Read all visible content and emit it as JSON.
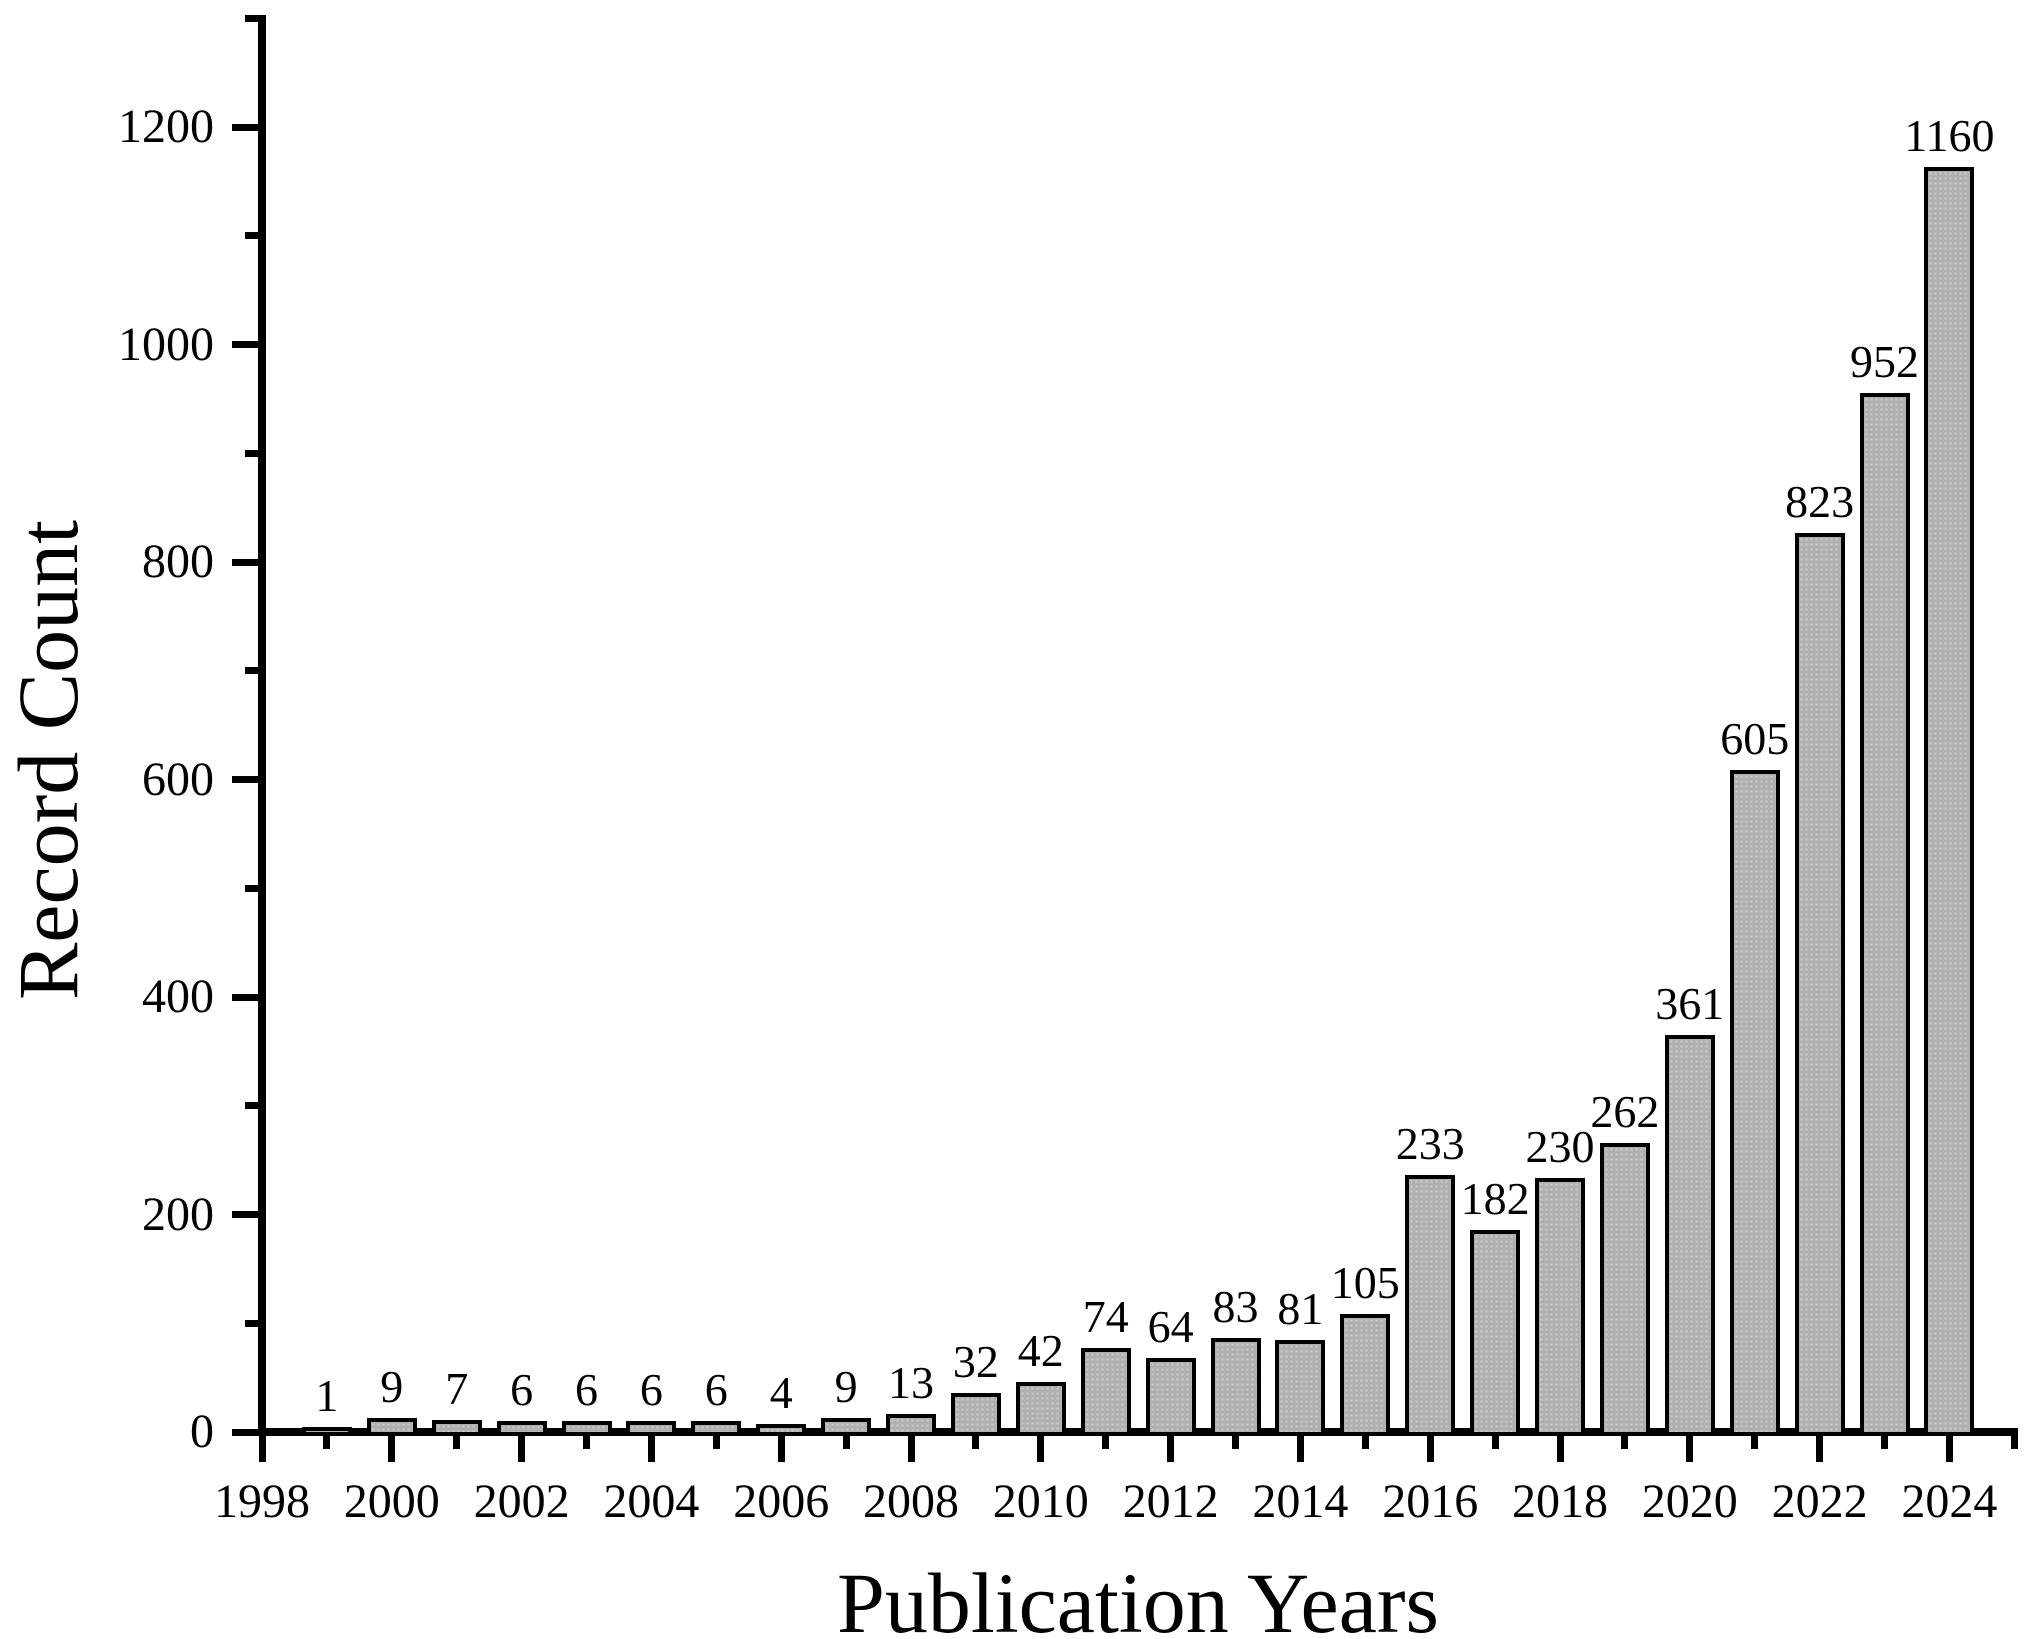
{
  "chart_data": {
    "type": "bar",
    "title": "",
    "xlabel": "Publication Years",
    "ylabel": "Record Count",
    "categories": [
      1999,
      2000,
      2001,
      2002,
      2003,
      2004,
      2005,
      2006,
      2007,
      2008,
      2009,
      2010,
      2011,
      2012,
      2013,
      2014,
      2015,
      2016,
      2017,
      2018,
      2019,
      2020,
      2021,
      2022,
      2023,
      2024
    ],
    "values": [
      1,
      9,
      7,
      6,
      6,
      6,
      6,
      4,
      9,
      13,
      32,
      42,
      74,
      64,
      83,
      81,
      105,
      233,
      182,
      230,
      262,
      361,
      605,
      823,
      952,
      1160
    ],
    "value_labels": [
      "1",
      "9",
      "7",
      "6",
      "6",
      "6",
      "6",
      "4",
      "9",
      "13",
      "32",
      "42",
      "74",
      "64",
      "83",
      "81",
      "105",
      "233",
      "182",
      "230",
      "262",
      "361",
      "605",
      "823",
      "952",
      "1160"
    ],
    "x_axis": {
      "range_start": 1998,
      "range_end": 2025,
      "major_tick_step": 2,
      "minor_tick_step": 1,
      "tick_labels": [
        "1998",
        "2000",
        "2002",
        "2004",
        "2006",
        "2008",
        "2010",
        "2012",
        "2014",
        "2016",
        "2018",
        "2020",
        "2022",
        "2024"
      ]
    },
    "y_axis": {
      "min": 0,
      "max": 1300,
      "major_tick_step": 200,
      "minor_tick_step": 100,
      "tick_labels": [
        "0",
        "200",
        "400",
        "600",
        "800",
        "1000",
        "1200"
      ]
    },
    "grid": false,
    "legend": false,
    "colors": {
      "bar_fill": "#b0b0b0",
      "bar_pattern_dot": "#cdcdcd",
      "bar_border": "#000000",
      "axis": "#000000",
      "text": "#000000",
      "background": "#ffffff"
    }
  }
}
